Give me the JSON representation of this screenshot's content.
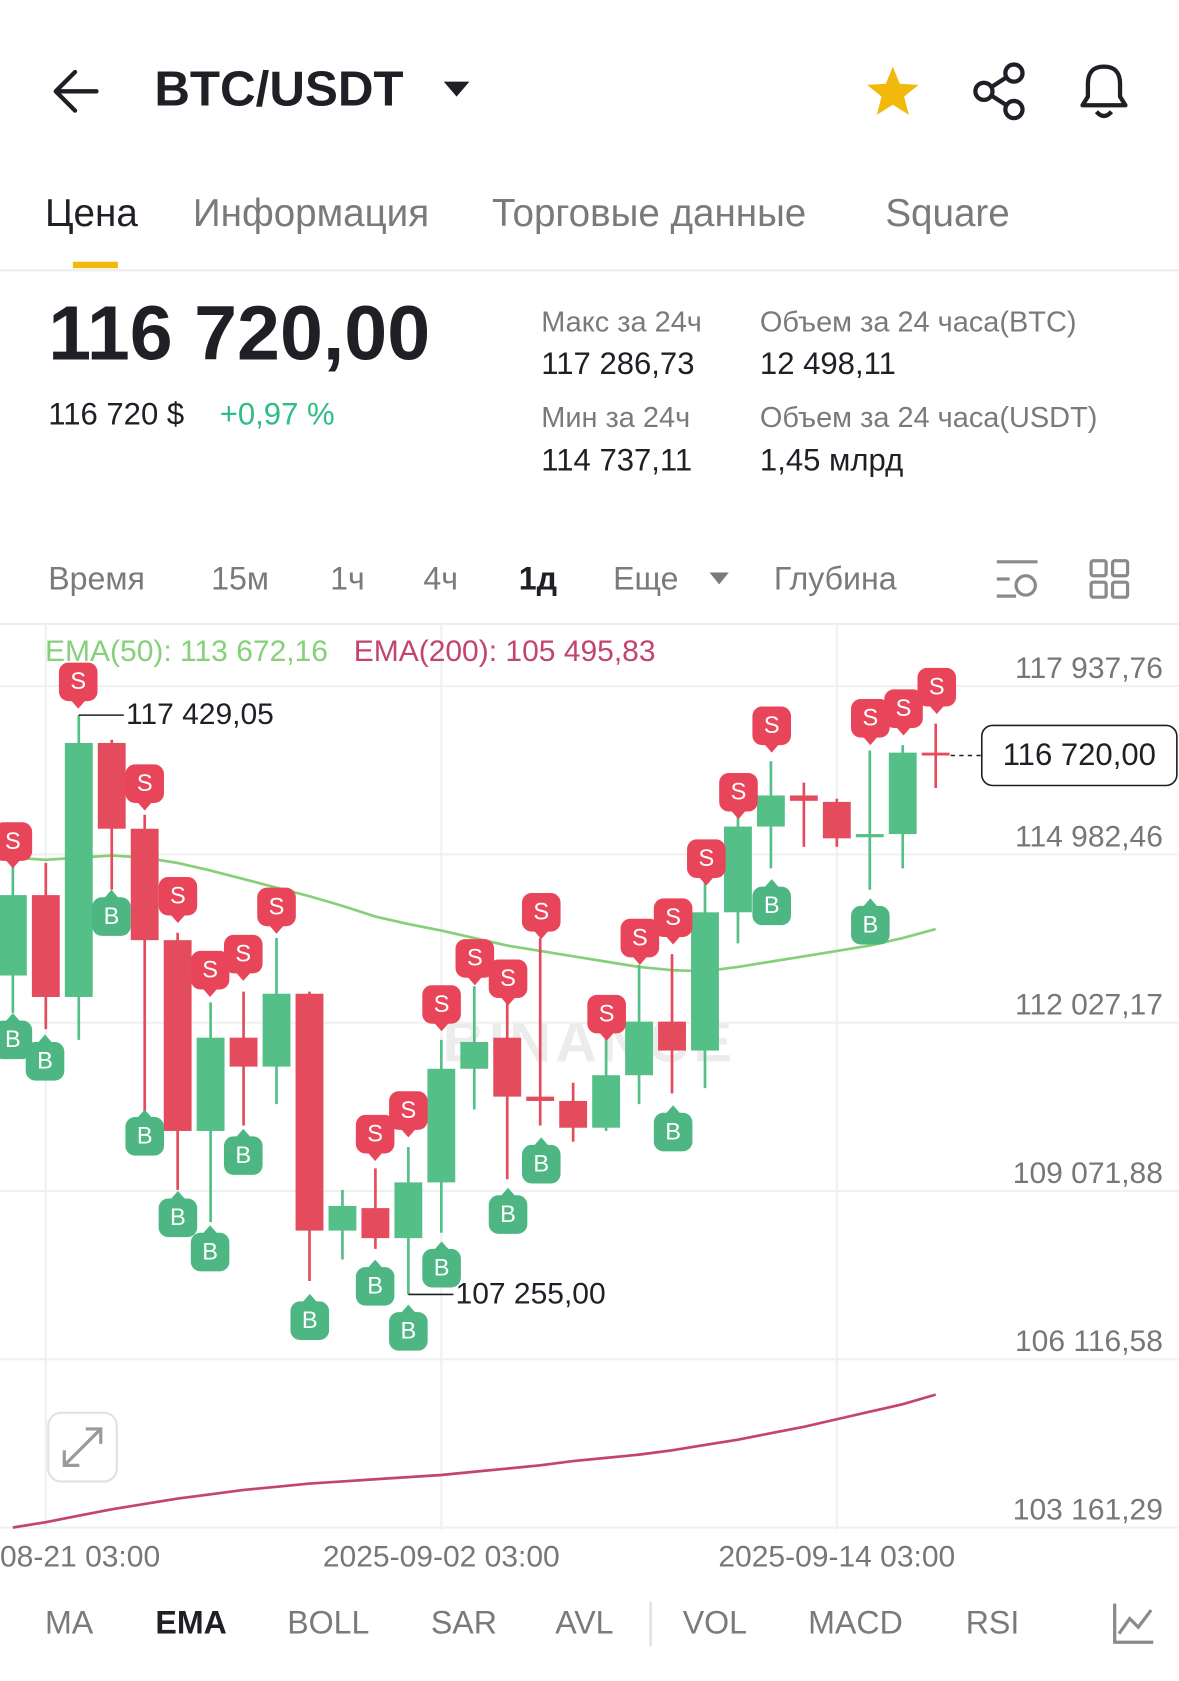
{
  "header": {
    "title": "BTC/USDT"
  },
  "tabs": [
    "Цена",
    "Информация",
    "Торговые данные",
    "Square"
  ],
  "price": {
    "last": "116 720,00",
    "fiat": "116 720 $",
    "change": "+0,97 %"
  },
  "stats": [
    {
      "label": "Макс за 24ч",
      "value": "117 286,73"
    },
    {
      "label": "Объем за 24 часа(BTC)",
      "value": "12 498,11"
    },
    {
      "label": "Мин за 24ч",
      "value": "114 737,11"
    },
    {
      "label": "Объем за 24 часа(USDT)",
      "value": "1,45 млрд"
    }
  ],
  "intervals": [
    "Время",
    "15м",
    "1ч",
    "4ч",
    "1д",
    "Еще",
    "Глубина"
  ],
  "indicators": [
    "MA",
    "EMA",
    "BOLL",
    "SAR",
    "AVL",
    "VOL",
    "MACD",
    "RSI"
  ],
  "trade_markers": [
    "S",
    "B",
    "B",
    "S",
    "B",
    "S",
    "B",
    "S",
    "B",
    "S",
    "B",
    "S",
    "B",
    "S",
    "B",
    "B",
    "S",
    "S",
    "B",
    "B",
    "S",
    "S",
    "S",
    "B",
    "S",
    "B",
    "S",
    "S",
    "S",
    "B",
    "S",
    "S",
    "S",
    "B",
    "S",
    "B",
    "S",
    "S"
  ],
  "chart_data": {
    "type": "candlestick",
    "watermark": "BINANCE",
    "categories": [
      null,
      "08-21 03:00",
      null,
      null,
      null,
      null,
      null,
      null,
      null,
      null,
      null,
      null,
      null,
      "2025-09-02 03:00",
      null,
      null,
      null,
      null,
      null,
      null,
      null,
      null,
      null,
      null,
      null,
      "2025-09-14 03:00",
      null,
      null,
      null
    ],
    "open": [
      112856,
      114268,
      112479,
      116940,
      115434,
      113477,
      110126,
      111764,
      111256,
      112536,
      108376,
      108771,
      108244,
      109223,
      111218,
      111764,
      110729,
      110653,
      110183,
      111105,
      112046,
      111538,
      113966,
      115472,
      116018,
      115905,
      115284,
      115340,
      116770
    ],
    "high": [
      114926,
      114832,
      117429.05,
      116997,
      115679,
      113608,
      112385,
      112573,
      113514,
      112573,
      109091,
      109468,
      109844,
      111726,
      112668,
      112385,
      113514,
      110973,
      111821,
      113044,
      113232,
      114550,
      115679,
      116620,
      116244,
      115961,
      116808,
      116903,
      117279
    ],
    "low": [
      112197,
      111915,
      111726,
      114362,
      110409,
      109091,
      108526,
      110221,
      110597,
      107491,
      107868,
      108056,
      107255,
      108338,
      110503,
      109279,
      110221,
      109938,
      110126,
      110597,
      110785,
      110879,
      113420,
      114738,
      115115,
      115115,
      114362,
      114738,
      116150
    ],
    "close": [
      114268,
      112479,
      116940,
      115434,
      113477,
      110126,
      111764,
      111256,
      112536,
      108376,
      108809,
      108244,
      109223,
      111218,
      111689,
      110729,
      110653,
      110183,
      111105,
      112046,
      111538,
      113966,
      115472,
      116018,
      115924,
      115265,
      115340,
      116770,
      116720
    ],
    "up_color": "#55bf88",
    "down_color": "#e44c5e",
    "series": [
      {
        "name": "EMA(50): 113 672,16",
        "color": "#86d07a",
        "values": [
          114926,
          114888,
          114926,
          114964,
          114926,
          114832,
          114700,
          114550,
          114399,
          114248,
          114079,
          113891,
          113759,
          113646,
          113514,
          113382,
          113288,
          113194,
          113100,
          113006,
          112950,
          112931,
          113006,
          113100,
          113194,
          113288,
          113382,
          113514,
          113672.16
        ]
      },
      {
        "name": "EMA(200): 105 495,83",
        "color": "#c2456f",
        "values": [
          103162,
          103256,
          103369,
          103482,
          103576,
          103670,
          103745,
          103821,
          103877,
          103934,
          103971,
          104009,
          104047,
          104084,
          104141,
          104197,
          104254,
          104329,
          104385,
          104442,
          104517,
          104611,
          104705,
          104818,
          104931,
          105063,
          105195,
          105327,
          105495.83
        ]
      }
    ],
    "annotations": [
      {
        "value": 117429.05,
        "label": "117 429,05"
      },
      {
        "value": 107255,
        "label": "107 255,00"
      }
    ],
    "current_price": {
      "value": 116720,
      "label": "116 720,00"
    },
    "ylim": [
      103123.65,
      119029.5
    ],
    "yticks": [
      {
        "value": 117937.76,
        "label": "117 937,76"
      },
      {
        "value": 114982.46,
        "label": "114 982,46"
      },
      {
        "value": 112027.17,
        "label": "112 027,17"
      },
      {
        "value": 109071.88,
        "label": "109 071,88"
      },
      {
        "value": 106116.58,
        "label": "106 116,58"
      },
      {
        "value": 103161.29,
        "label": "103 161,29"
      }
    ],
    "grid": true
  }
}
